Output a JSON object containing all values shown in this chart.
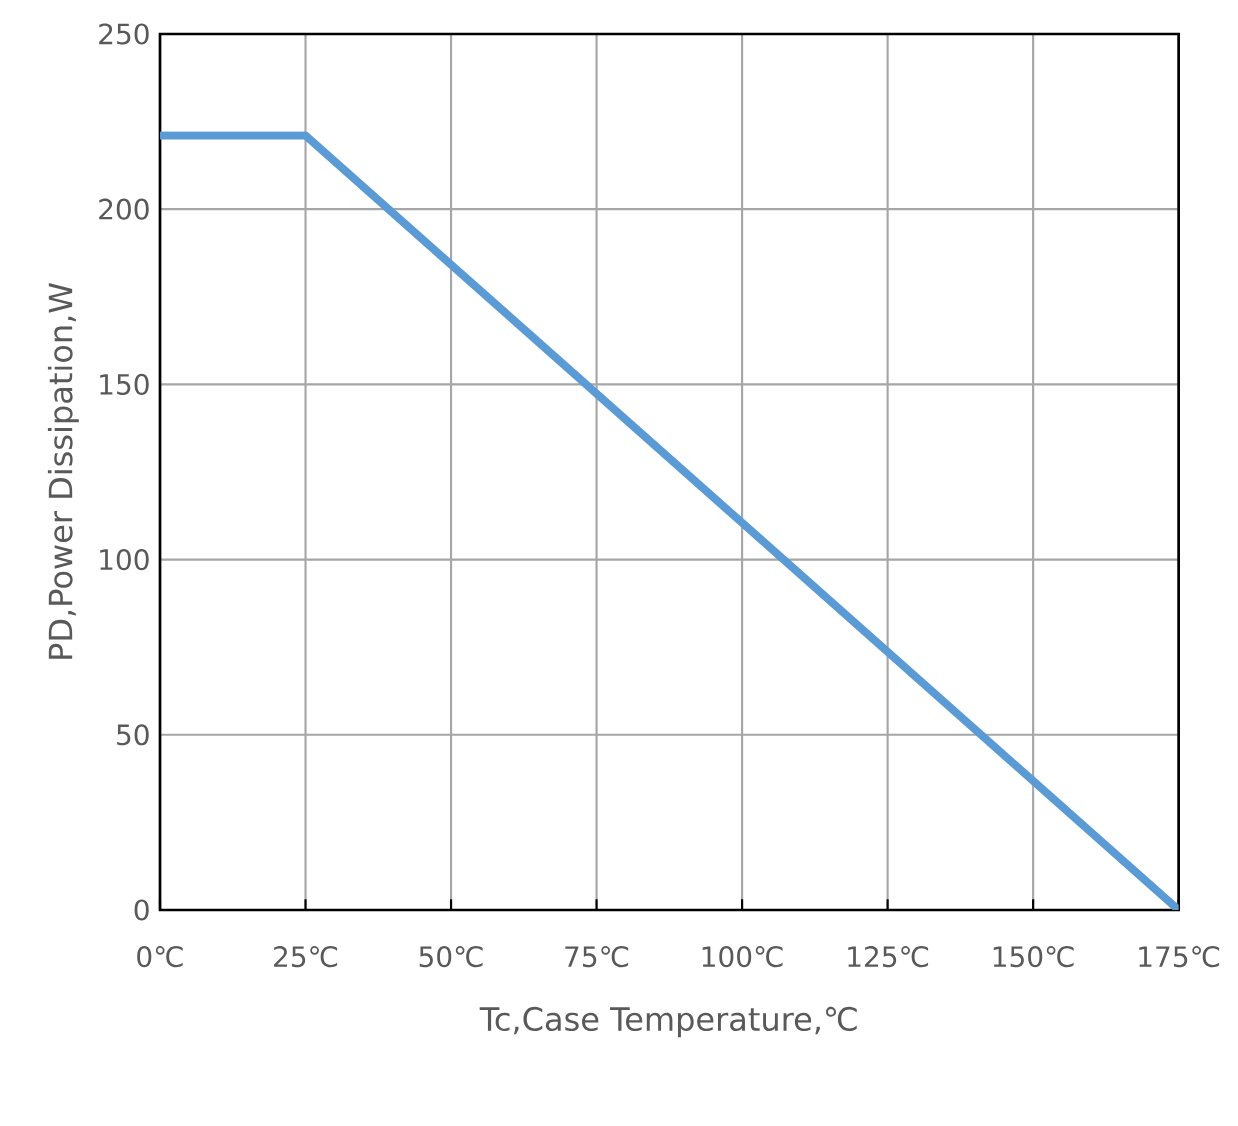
{
  "chart_data": {
    "type": "line",
    "xlabel": "Tc,Case Temperature,℃",
    "ylabel": "PD,Power Dissipation,W",
    "x": [
      0,
      25,
      175
    ],
    "series": [
      {
        "color": "#5b9bd5",
        "values": [
          221,
          221,
          0
        ]
      }
    ],
    "xlim": [
      0,
      175
    ],
    "xticks": [
      {
        "value": 0,
        "label": "0℃"
      },
      {
        "value": 25,
        "label": "25℃"
      },
      {
        "value": 50,
        "label": "50℃"
      },
      {
        "value": 75,
        "label": "75℃"
      },
      {
        "value": 100,
        "label": "100℃"
      },
      {
        "value": 125,
        "label": "125℃"
      },
      {
        "value": 150,
        "label": "150℃"
      },
      {
        "value": 175,
        "label": "175℃"
      }
    ],
    "ylim": [
      0,
      250
    ],
    "yticks": [
      0,
      50,
      100,
      150,
      200,
      250
    ],
    "grid": true,
    "marker": "none",
    "line_style": "solid"
  }
}
